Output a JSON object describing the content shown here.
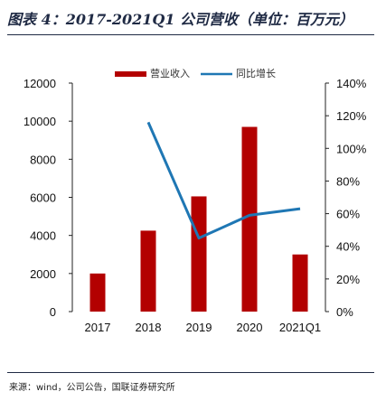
{
  "figure": {
    "title": "图表 4：2017-2021Q1 公司营收（单位：百万元）",
    "source": "来源：wind，公司公告，国联证券研究所"
  },
  "colors": {
    "bar": "#b30000",
    "line": "#1f77b4",
    "axis": "#222222"
  },
  "chart_data": {
    "type": "bar",
    "categories": [
      "2017",
      "2018",
      "2019",
      "2020",
      "2021Q1"
    ],
    "series": [
      {
        "name": "营业收入",
        "type": "bar",
        "axis": "left",
        "values": [
          2000,
          4250,
          6050,
          9700,
          3000
        ]
      },
      {
        "name": "同比增长",
        "type": "line",
        "axis": "right",
        "values": [
          null,
          1.16,
          0.45,
          0.59,
          0.63
        ]
      }
    ],
    "y_left": {
      "min": 0,
      "max": 12000,
      "ticks": [
        0,
        2000,
        4000,
        6000,
        8000,
        10000,
        12000
      ]
    },
    "y_right": {
      "min": 0,
      "max": 1.4,
      "ticks": [
        "0%",
        "20%",
        "40%",
        "60%",
        "80%",
        "100%",
        "120%",
        "140%"
      ]
    },
    "legend": "top-center"
  }
}
